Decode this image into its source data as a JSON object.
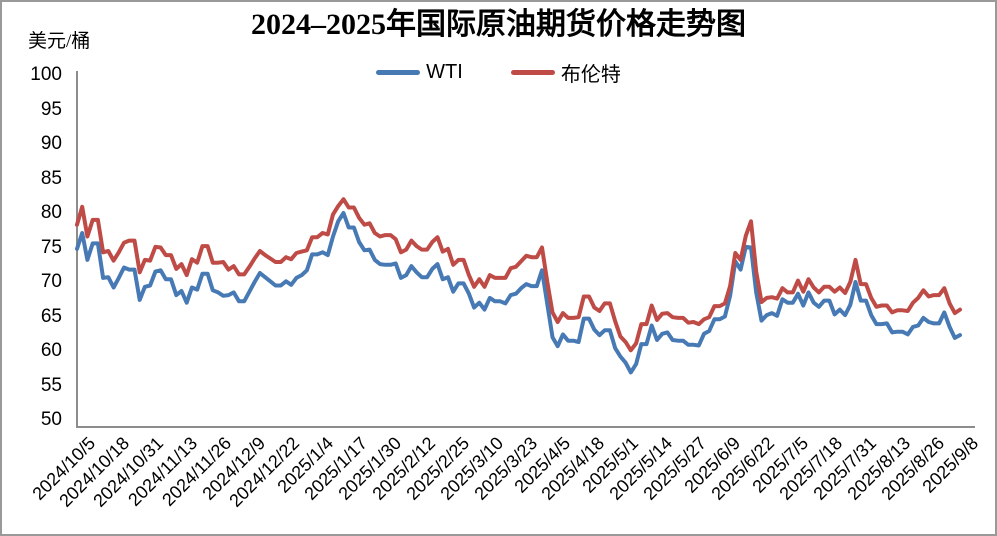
{
  "title": "2024–2025年国际原油期货价格走势图",
  "unit_label": "美元/桶",
  "legend": {
    "items": [
      {
        "label": "WTI",
        "color": "#4779B4"
      },
      {
        "label": "布伦特",
        "color": "#BF4B47"
      }
    ]
  },
  "chart_data": {
    "type": "line",
    "title": "2024–2025年国际原油期货价格走势图",
    "ylabel": "美元/桶",
    "ylim": [
      50,
      100
    ],
    "ytick_interval": 5,
    "ytick_labels": [
      "100",
      "95",
      "90",
      "85",
      "80",
      "75",
      "70",
      "65",
      "60",
      "55",
      "50"
    ],
    "grid": false,
    "legend_position": "top-center",
    "x_tick_labels": [
      "2024/10/5",
      "2024/10/18",
      "2024/10/31",
      "2024/11/13",
      "2024/11/26",
      "2024/12/9",
      "2024/12/22",
      "2025/1/4",
      "2025/1/17",
      "2025/1/30",
      "2025/2/12",
      "2025/2/25",
      "2025/3/10",
      "2025/3/23",
      "2025/4/5",
      "2025/4/18",
      "2025/5/1",
      "2025/5/14",
      "2025/5/27",
      "2025/6/9",
      "2025/6/22",
      "2025/7/5",
      "2025/7/18",
      "2025/7/31",
      "2025/8/13",
      "2025/8/26",
      "2025/9/8"
    ],
    "x_first_date": "2024/10/5",
    "x_last_date": "2025/9/8",
    "point_interval_days": 2,
    "series": [
      {
        "name": "WTI",
        "color": "#4779B4",
        "values": [
          74.8,
          77.1,
          73.2,
          75.6,
          75.6,
          70.6,
          70.7,
          69.2,
          70.6,
          72.1,
          71.8,
          71.8,
          67.4,
          69.3,
          69.5,
          71.5,
          71.7,
          70.4,
          70.4,
          68.1,
          68.7,
          67.0,
          69.2,
          68.9,
          71.2,
          71.2,
          68.8,
          68.5,
          68.0,
          68.1,
          68.5,
          67.2,
          67.2,
          68.6,
          70.0,
          71.3,
          70.7,
          70.1,
          69.5,
          69.5,
          70.1,
          69.6,
          70.6,
          71.0,
          71.7,
          74.0,
          74.0,
          74.3,
          73.9,
          76.6,
          78.8,
          80.0,
          77.9,
          77.9,
          75.8,
          74.6,
          74.7,
          73.2,
          72.6,
          72.5,
          72.5,
          72.7,
          70.6,
          71.0,
          72.3,
          71.4,
          70.7,
          70.7,
          71.9,
          72.6,
          70.4,
          70.7,
          68.6,
          69.8,
          69.8,
          68.3,
          66.3,
          67.0,
          66.0,
          67.7,
          67.2,
          67.2,
          66.9,
          68.1,
          68.3,
          69.1,
          69.7,
          69.4,
          69.4,
          71.7,
          66.9,
          62.0,
          60.7,
          62.4,
          61.5,
          61.5,
          61.3,
          64.7,
          64.7,
          63.1,
          62.3,
          63.0,
          63.0,
          60.4,
          59.2,
          58.3,
          56.9,
          58.1,
          61.0,
          61.0,
          63.7,
          61.6,
          62.5,
          62.7,
          61.6,
          61.5,
          61.5,
          60.9,
          60.9,
          60.8,
          62.5,
          62.9,
          64.6,
          64.6,
          65.0,
          68.0,
          73.0,
          71.8,
          75.1,
          75.0,
          68.5,
          64.4,
          65.2,
          65.5,
          65.1,
          67.5,
          67.0,
          67.0,
          68.3,
          66.6,
          68.5,
          67.0,
          66.4,
          67.3,
          67.3,
          65.3,
          66.0,
          65.2,
          66.7,
          70.0,
          67.3,
          67.3,
          65.2,
          63.9,
          63.9,
          64.0,
          62.7,
          62.8,
          62.8,
          62.4,
          63.5,
          63.7,
          64.8,
          64.2,
          64.0,
          64.0,
          65.6,
          63.5,
          61.9,
          62.3
        ]
      },
      {
        "name": "布伦特",
        "color": "#BF4B47",
        "values": [
          78.3,
          80.9,
          76.6,
          79.0,
          79.0,
          74.3,
          74.5,
          73.1,
          74.3,
          75.7,
          76.0,
          76.0,
          71.4,
          73.2,
          73.1,
          75.1,
          75.0,
          73.9,
          73.9,
          71.9,
          72.6,
          71.0,
          73.3,
          72.8,
          75.2,
          75.2,
          72.8,
          72.8,
          72.9,
          71.8,
          72.3,
          71.1,
          71.1,
          72.2,
          73.4,
          74.5,
          73.9,
          73.4,
          72.9,
          72.9,
          73.6,
          73.3,
          74.2,
          74.4,
          74.6,
          76.5,
          76.5,
          77.1,
          76.9,
          79.8,
          81.0,
          82.0,
          80.8,
          80.8,
          79.3,
          78.3,
          78.5,
          77.1,
          76.6,
          76.8,
          76.8,
          76.2,
          74.3,
          74.7,
          76.0,
          75.2,
          74.7,
          74.7,
          75.8,
          76.5,
          74.4,
          74.8,
          72.5,
          73.2,
          73.2,
          71.0,
          69.3,
          70.4,
          69.3,
          71.0,
          70.6,
          70.6,
          70.6,
          72.0,
          72.2,
          73.0,
          73.8,
          73.6,
          73.6,
          75.0,
          70.1,
          65.6,
          64.2,
          65.5,
          64.8,
          64.8,
          64.9,
          67.9,
          67.9,
          66.3,
          65.8,
          66.9,
          66.9,
          64.3,
          62.1,
          61.3,
          60.1,
          61.1,
          63.9,
          63.9,
          66.6,
          64.5,
          65.4,
          65.5,
          64.9,
          64.8,
          64.8,
          64.1,
          64.2,
          63.9,
          64.6,
          64.9,
          66.5,
          66.5,
          66.9,
          69.4,
          74.2,
          73.2,
          76.7,
          78.8,
          71.5,
          67.1,
          67.7,
          67.8,
          67.6,
          69.1,
          68.5,
          68.5,
          70.2,
          68.6,
          70.4,
          69.2,
          68.5,
          69.3,
          69.3,
          68.6,
          69.2,
          68.4,
          70.0,
          73.2,
          69.7,
          69.7,
          67.7,
          66.4,
          66.6,
          66.6,
          65.6,
          65.9,
          65.9,
          65.8,
          67.0,
          67.7,
          68.8,
          67.9,
          68.1,
          68.1,
          69.1,
          66.9,
          65.5,
          66.0
        ]
      }
    ]
  },
  "axis_color": "#8C8C8C"
}
